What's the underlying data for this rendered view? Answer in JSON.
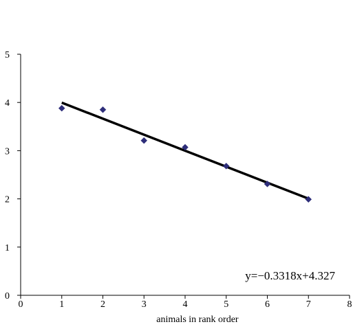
{
  "chart_data": {
    "type": "scatter",
    "title": "",
    "xlabel": "animals in rank order",
    "ylabel": "",
    "xlim": [
      0,
      8
    ],
    "ylim": [
      0,
      5
    ],
    "x_ticks": [
      "0",
      "1",
      "2",
      "3",
      "4",
      "5",
      "6",
      "7",
      "8"
    ],
    "y_ticks": [
      "0",
      "1",
      "2",
      "3",
      "4",
      "5"
    ],
    "grid": false,
    "legend": "none",
    "series": [
      {
        "marker": "diamond",
        "color": "#2e2e7a",
        "points": [
          {
            "x": 1,
            "y": 3.88
          },
          {
            "x": 2,
            "y": 3.85
          },
          {
            "x": 3,
            "y": 3.21
          },
          {
            "x": 4,
            "y": 3.07
          },
          {
            "x": 5,
            "y": 2.68
          },
          {
            "x": 6,
            "y": 2.31
          },
          {
            "x": 7,
            "y": 1.99
          }
        ]
      }
    ],
    "trendline": {
      "slope": -0.3318,
      "intercept": 4.327,
      "x_range": [
        1,
        7
      ],
      "color": "#000000",
      "equation": "y=−0.3318x+4.327"
    }
  }
}
